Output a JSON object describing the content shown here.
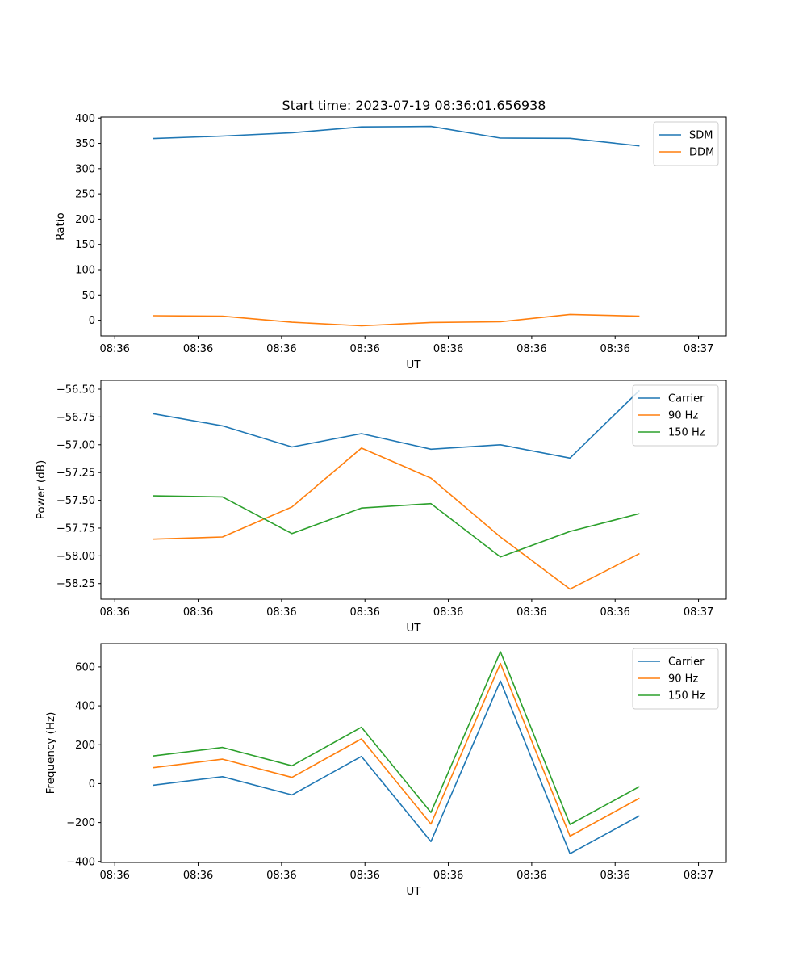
{
  "title": "Start time: 2023-07-19 08:36:01.656938",
  "colors": {
    "series1": "#1f77b4",
    "series2": "#ff7f0e",
    "series3": "#2ca02c",
    "axes": "#000000",
    "legend_border": "#cccccc"
  },
  "chart_data": [
    {
      "type": "line",
      "xlabel": "UT",
      "ylabel": "Ratio",
      "xtick_labels": [
        "08:36",
        "08:36",
        "08:36",
        "08:36",
        "08:36",
        "08:36",
        "08:36"
      ],
      "xtick_label_last": "08:37",
      "x_index": [
        0,
        1,
        2,
        3,
        4,
        5,
        6,
        7
      ],
      "xlim": [
        -0.2,
        8.8
      ],
      "ylim": [
        -31,
        402
      ],
      "yticks": [
        0,
        50,
        100,
        150,
        200,
        250,
        300,
        350,
        400
      ],
      "ytick_labels": [
        "0",
        "50",
        "100",
        "150",
        "200",
        "250",
        "300",
        "350",
        "400"
      ],
      "legend_position": "upper right",
      "series": [
        {
          "name": "SDM",
          "values": [
            359.5,
            364.5,
            371.0,
            382.5,
            383.5,
            360.5,
            360.0,
            345.0
          ]
        },
        {
          "name": "DDM",
          "values": [
            9.0,
            8.0,
            -4.0,
            -11.0,
            -4.5,
            -3.0,
            11.5,
            8.0
          ]
        }
      ]
    },
    {
      "type": "line",
      "xlabel": "UT",
      "ylabel": "Power (dB)",
      "xtick_labels": [
        "08:36",
        "08:36",
        "08:36",
        "08:36",
        "08:36",
        "08:36",
        "08:36"
      ],
      "xtick_label_last": "08:37",
      "x_index": [
        0,
        1,
        2,
        3,
        4,
        5,
        6,
        7
      ],
      "xlim": [
        -0.2,
        8.8
      ],
      "ylim": [
        -58.39,
        -56.42
      ],
      "yticks": [
        -58.25,
        -58.0,
        -57.75,
        -57.5,
        -57.25,
        -57.0,
        -56.75,
        -56.5
      ],
      "ytick_labels": [
        "−58.25",
        "−58.00",
        "−57.75",
        "−57.50",
        "−57.25",
        "−57.00",
        "−56.75",
        "−56.50"
      ],
      "legend_position": "upper right",
      "series": [
        {
          "name": "Carrier",
          "values": [
            -56.72,
            -56.83,
            -57.02,
            -56.9,
            -57.04,
            -57.0,
            -57.12,
            -56.51
          ]
        },
        {
          "name": "90 Hz",
          "values": [
            -57.85,
            -57.83,
            -57.56,
            -57.03,
            -57.3,
            -57.83,
            -58.3,
            -57.98
          ]
        },
        {
          "name": "150 Hz",
          "values": [
            -57.46,
            -57.47,
            -57.8,
            -57.57,
            -57.53,
            -58.01,
            -57.78,
            -57.62
          ]
        }
      ]
    },
    {
      "type": "line",
      "xlabel": "UT",
      "ylabel": "Frequency (Hz)",
      "xtick_labels": [
        "08:36",
        "08:36",
        "08:36",
        "08:36",
        "08:36",
        "08:36",
        "08:36"
      ],
      "xtick_label_last": "08:37",
      "x_index": [
        0,
        1,
        2,
        3,
        4,
        5,
        6,
        7
      ],
      "xlim": [
        -0.2,
        8.8
      ],
      "ylim": [
        -405,
        720
      ],
      "yticks": [
        -400,
        -200,
        0,
        200,
        400,
        600
      ],
      "ytick_labels": [
        "−400",
        "−200",
        "0",
        "200",
        "400",
        "600"
      ],
      "legend_position": "upper right",
      "series": [
        {
          "name": "Carrier",
          "values": [
            -8,
            36,
            -58,
            140,
            -298,
            528,
            -360,
            -165
          ]
        },
        {
          "name": "90 Hz",
          "values": [
            82,
            126,
            32,
            230,
            -208,
            618,
            -270,
            -75
          ]
        },
        {
          "name": "150 Hz",
          "values": [
            142,
            186,
            92,
            290,
            -148,
            678,
            -210,
            -15
          ]
        }
      ]
    }
  ]
}
